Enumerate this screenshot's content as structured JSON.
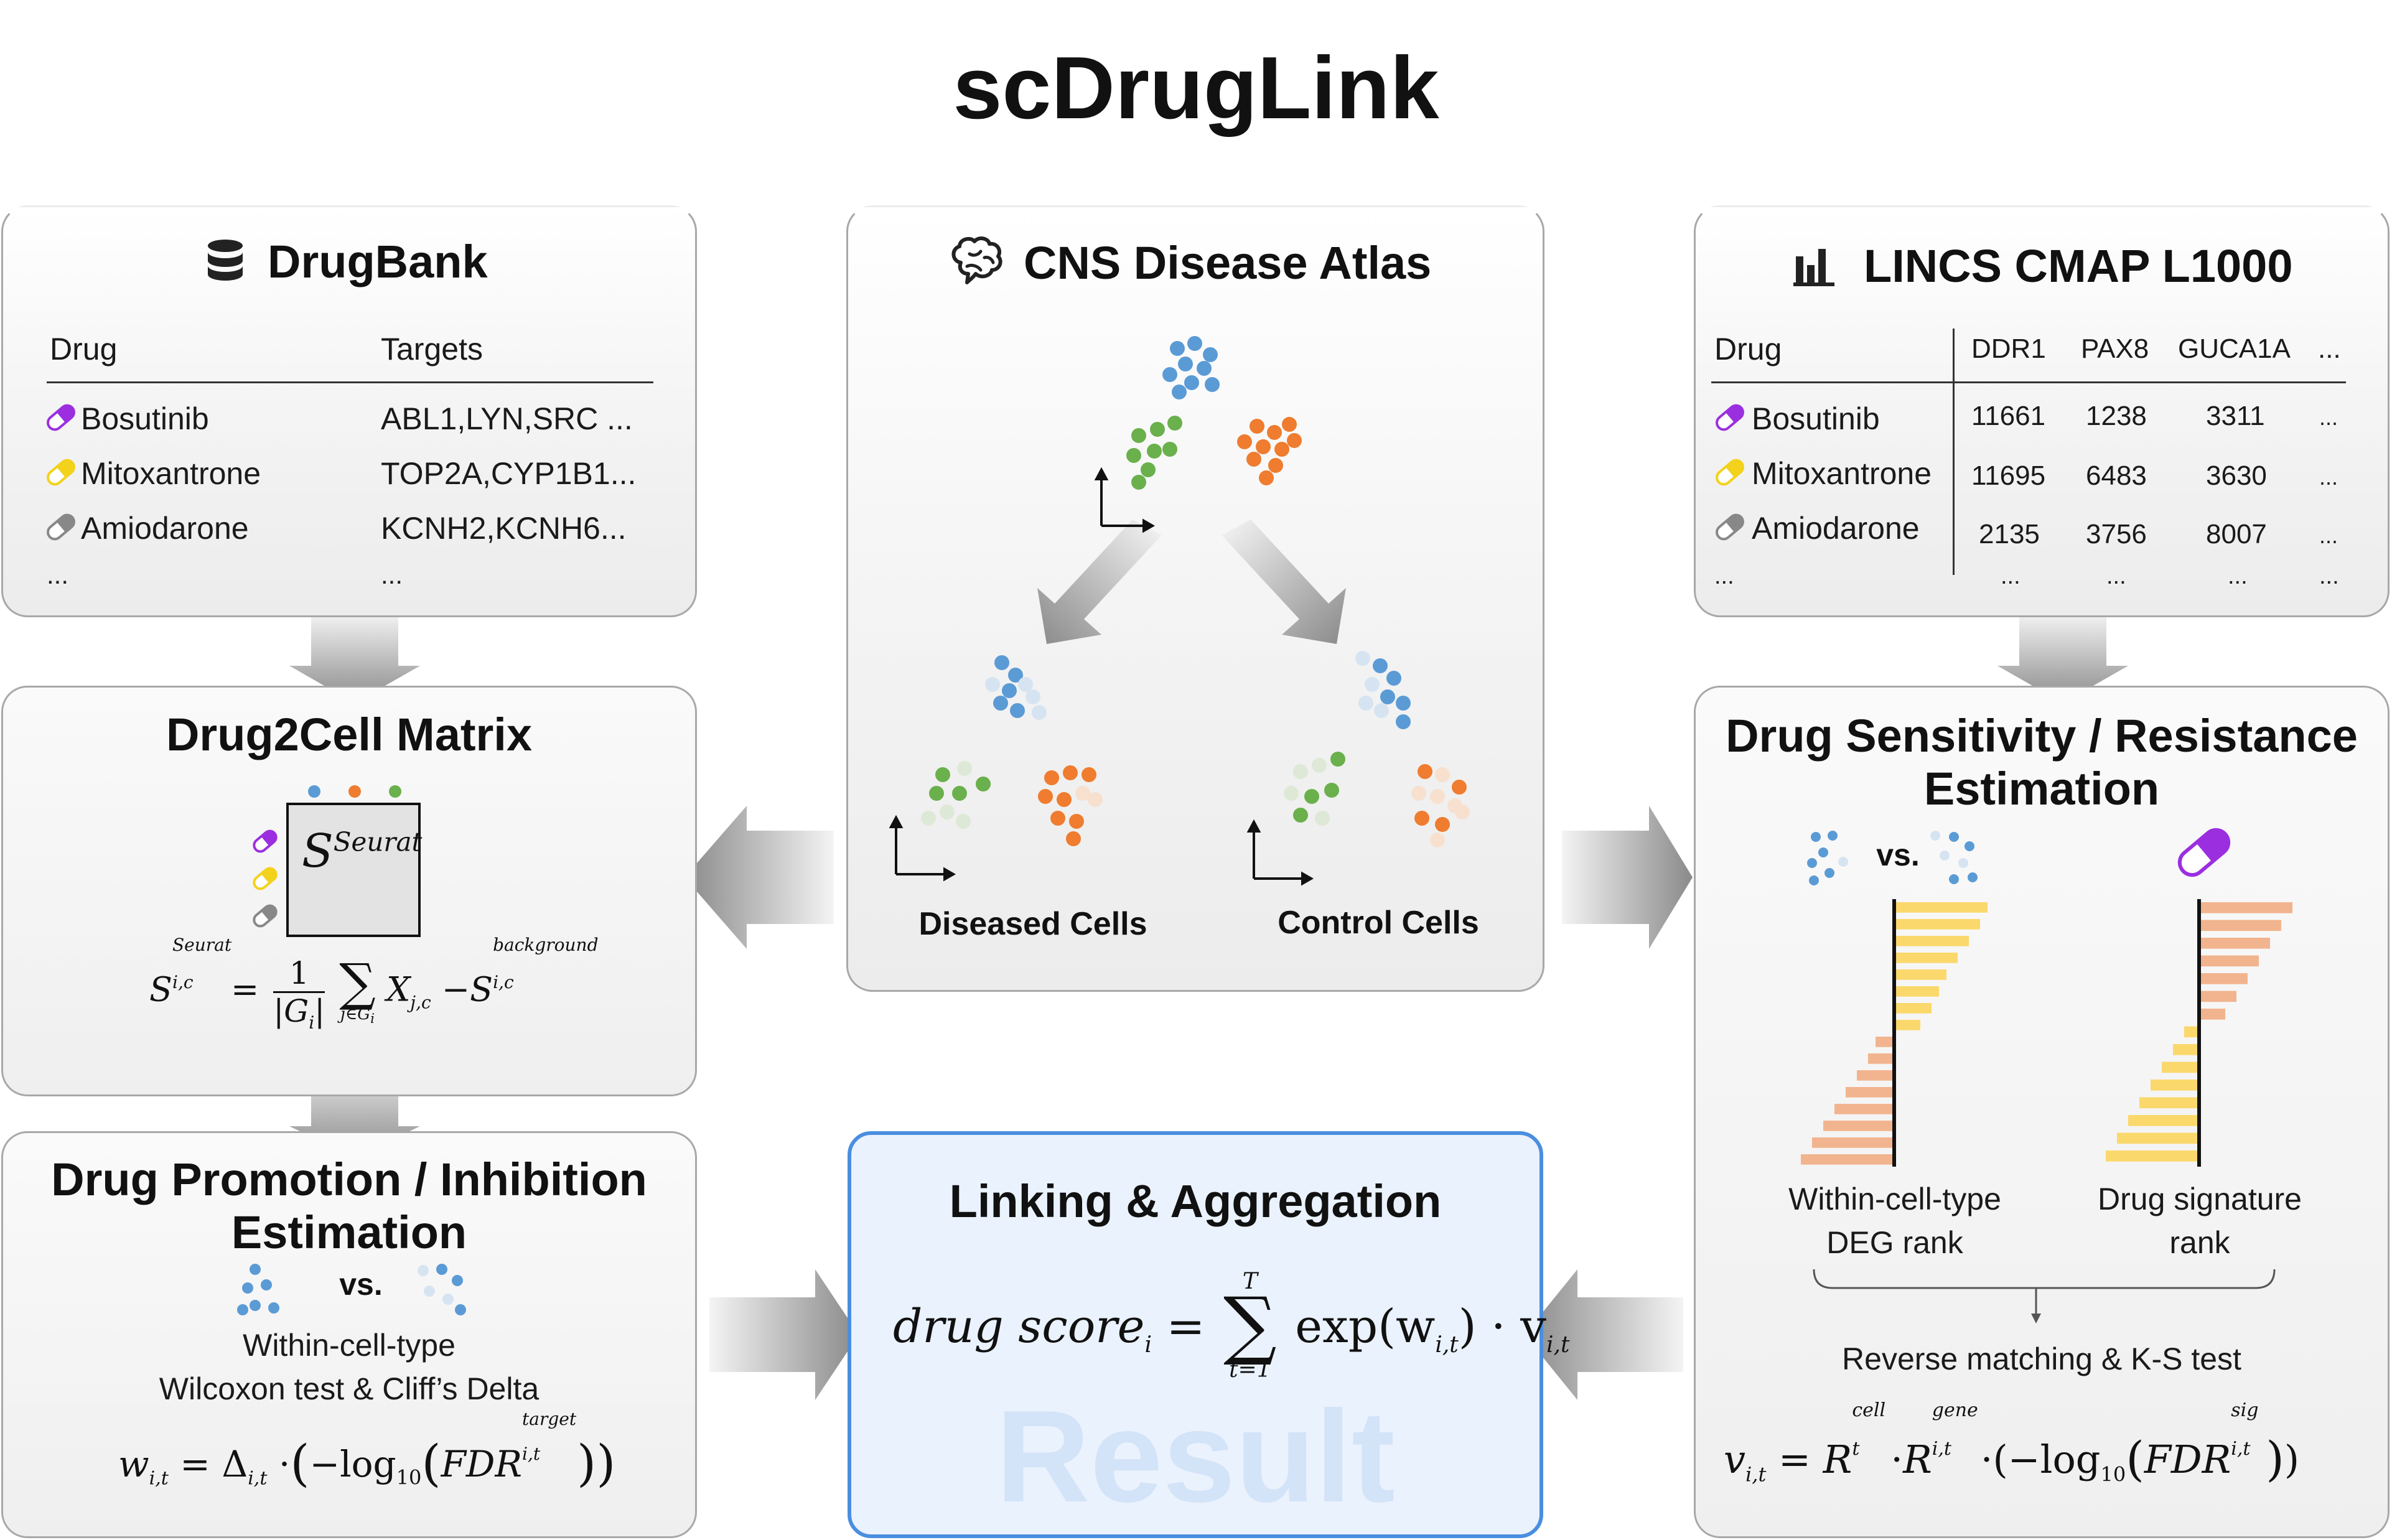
{
  "title": "scDrugLink",
  "drugbank": {
    "title": "DrugBank",
    "col_drug": "Drug",
    "col_targets": "Targets",
    "rows": [
      {
        "drug": "Bosutinib",
        "targets": "ABL1,LYN,SRC ...",
        "color": "#9b2fe0"
      },
      {
        "drug": "Mitoxantrone",
        "targets": "TOP2A,CYP1B1...",
        "color": "#f2d21b"
      },
      {
        "drug": "Amiodarone",
        "targets": "KCNH2,KCNH6...",
        "color": "#888888"
      }
    ],
    "ellipsis": "...",
    "ellipsis2": "..."
  },
  "atlas": {
    "title": "CNS Disease Atlas",
    "diseased_label": "Diseased Cells",
    "control_label": "Control Cells"
  },
  "lincs": {
    "title": "LINCS CMAP L1000",
    "col_drug": "Drug",
    "genes": [
      "DDR1",
      "PAX8",
      "GUCA1A",
      "..."
    ],
    "rows": [
      {
        "drug": "Bosutinib",
        "values": [
          "11661",
          "1238",
          "3311",
          "..."
        ],
        "color": "#9b2fe0"
      },
      {
        "drug": "Mitoxantrone",
        "values": [
          "11695",
          "6483",
          "3630",
          "..."
        ],
        "color": "#f2d21b"
      },
      {
        "drug": "Amiodarone",
        "values": [
          "2135",
          "3756",
          "8007",
          "..."
        ],
        "color": "#888888"
      }
    ],
    "ellipsis_row": [
      "...",
      "...",
      "...",
      "...",
      "..."
    ]
  },
  "drug2cell": {
    "title": "Drug2Cell Matrix",
    "matrix_label": "S",
    "matrix_sup": "Seurat"
  },
  "promotion": {
    "title_line1": "Drug Promotion / Inhibition",
    "title_line2": "Estimation",
    "vs": "vs.",
    "desc_line1": "Within-cell-type",
    "desc_line2": "Wilcoxon test & Cliff’s Delta"
  },
  "sensitivity": {
    "title_line1": "Drug Sensitivity / Resistance",
    "title_line2": "Estimation",
    "vs": "vs.",
    "left_caption_line1": "Within-cell-type",
    "left_caption_line2": "DEG rank",
    "right_caption_line1": "Drug signature",
    "right_caption_line2": "rank",
    "method": "Reverse matching & K-S test",
    "deg_bars": [
      1.0,
      0.92,
      0.8,
      0.68,
      0.56,
      0.48,
      0.4,
      0.28,
      -0.2,
      -0.28,
      -0.4,
      -0.52,
      -0.64,
      -0.76,
      -0.88,
      -1.0
    ],
    "sig_bars": [
      1.0,
      0.88,
      0.76,
      0.64,
      0.52,
      0.4,
      0.28,
      -0.16,
      -0.28,
      -0.4,
      -0.52,
      -0.64,
      -0.76,
      -0.88,
      -1.0
    ],
    "colors": {
      "up": "#fbd86c",
      "down": "#f2b48e"
    }
  },
  "result": {
    "title": "Linking & Aggregation",
    "watermark": "Result",
    "formula": {
      "lhs": "drug score",
      "lhs_sub": "i",
      "sum_top": "T",
      "sum_bottom": "t=1",
      "body": "exp(w",
      "body_sub": "i,t",
      "body_end": ") · v",
      "v_sub": "i,t"
    }
  },
  "colors": {
    "blue": "#5b9bd5",
    "green": "#6ab04c",
    "orange": "#ef7c2f",
    "result_border": "#4a8ee0"
  }
}
